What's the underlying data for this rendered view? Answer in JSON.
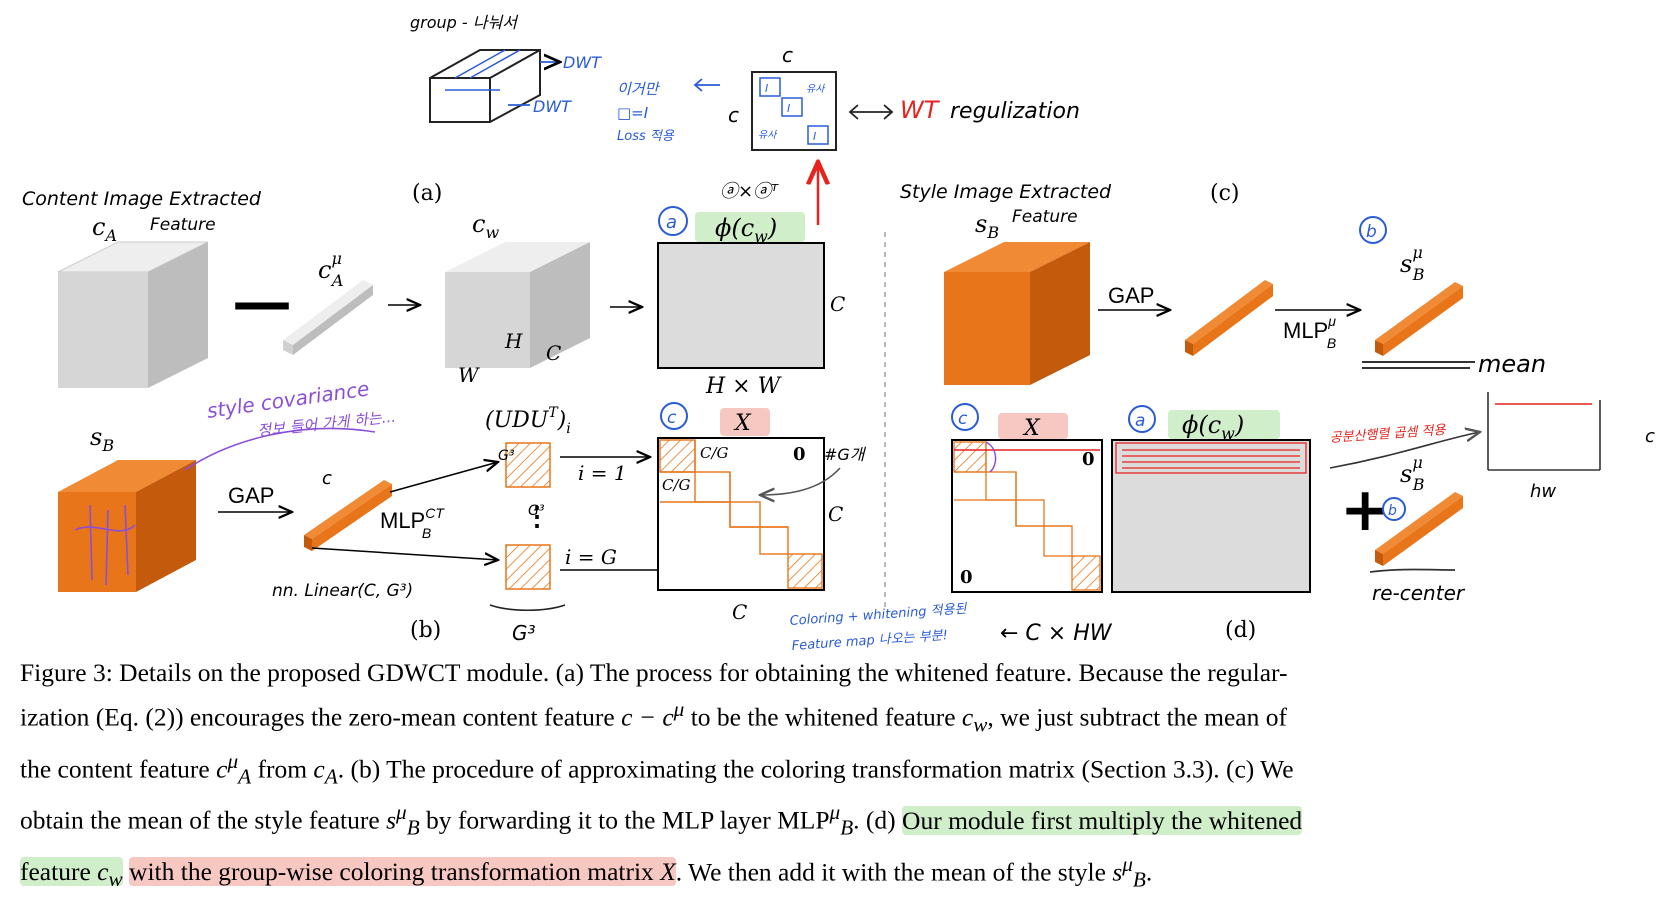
{
  "panels": {
    "a": "(a)",
    "b": "(b)",
    "c": "(c)",
    "d": "(d)"
  },
  "labels": {
    "c_A": "c",
    "c_A_sub": "A",
    "c_A_mu": "c",
    "mu": "μ",
    "A": "A",
    "c_w": "c",
    "w": "w",
    "H": "H",
    "W": "W",
    "C": "C",
    "H_x_W": "H × W",
    "s_B": "s",
    "B": "B",
    "GAP": "GAP",
    "MLP": "MLP",
    "CT": "CT",
    "UDU": "(UDU",
    "UDU_T": "T",
    "UDU_i": ")",
    "i_sub": "i",
    "i1": "i = 1",
    "iG": "i = G",
    "vdots": "⋮",
    "C_over_G": "C/G",
    "zero": "0",
    "X": "X",
    "phi_cw": "ϕ(c",
    "phi_close": ")",
    "minus": "—",
    "plus": "+"
  },
  "annotations": {
    "group": "group - 나눠서",
    "dwt": "DWT",
    "wt_reg_red": "WT",
    "wt_reg_black": "regulization",
    "axaT": "ⓐ×ⓐᵀ",
    "loss_note_1": "이거만",
    "loss_note_2": "□=I",
    "loss_note_3": "Loss 적용",
    "I": "I",
    "lookalike": "유사",
    "content_title_1": "Content Image Extracted",
    "content_title_2": "Feature",
    "style_title_1": "Style Image Extracted",
    "style_title_2": "Feature",
    "circ_a": "a",
    "circ_b": "b",
    "circ_c": "c",
    "style_cov_1": "style covariance",
    "style_cov_2": "정보 들어 가게 하는...",
    "nn_linear": "nn. Linear(C, G³)",
    "G3": "G³",
    "numG": "#G개",
    "coloring_1": "Coloring + whitening 적용된",
    "coloring_2": "Feature map 나오는 부분!",
    "cxhw": "← C × HW",
    "mean": "mean",
    "re_center": "re-center",
    "hw": "hw",
    "red_note": "공분산행렬 곱셈 적용",
    "C_small": "c"
  },
  "caption": {
    "l1": "Figure 3: Details on the proposed GDWCT module. (a) The process for obtaining the whitened feature. Because the regular-",
    "l2a": "ization (Eq. (2)) encourages the zero-mean content feature ",
    "l2math": "c − c",
    "l2b": " to be the whitened feature ",
    "l2c": ", we just subtract the mean of",
    "l3a": "the content feature ",
    "l3b": " from ",
    "l3c": ". (b) The procedure of approximating the coloring transformation matrix (Section 3.3). (c) We",
    "l4a": "obtain the mean of the style feature ",
    "l4b": " by forwarding it to the MLP layer MLP",
    "l4c": ". (d) ",
    "l4green": "Our module first multiply the whitened",
    "l5green": "feature ",
    "l5red": "with the group-wise coloring transformation matrix ",
    "l5c": ". We then add it with the mean of the style ",
    "l5d": "."
  },
  "colors": {
    "orange": "#e8751a",
    "orange_dark": "#c45a0c",
    "grey_box": "#dcdcdc",
    "green_hl": "#cfeec9",
    "red_hl": "#f7c8c2",
    "blue_ink": "#2a5bd7",
    "red_ink": "#e52420",
    "purple_ink": "#8a4fd6"
  }
}
